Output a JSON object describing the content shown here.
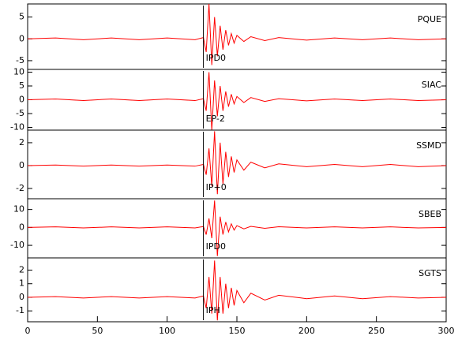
{
  "chart_data": [
    {
      "type": "line",
      "annotation": "IPD0",
      "pick_time": 126,
      "x": [
        0,
        20,
        40,
        60,
        80,
        100,
        120,
        126,
        128,
        130,
        132,
        134,
        136,
        138,
        140,
        142,
        144,
        146,
        148,
        150,
        155,
        160,
        170,
        180,
        200,
        220,
        240,
        260,
        280,
        300
      ],
      "series": [
        {
          "name": "PQUE",
          "color": "#ff0000",
          "values": [
            0,
            0.2,
            -0.2,
            0.2,
            -0.2,
            0.2,
            -0.2,
            0.3,
            -3,
            8,
            -6,
            5,
            -4,
            3,
            -2.5,
            2,
            -1.5,
            1.2,
            -1,
            0.8,
            -0.6,
            0.5,
            -0.4,
            0.3,
            -0.3,
            0.2,
            -0.2,
            0.2,
            -0.2,
            0
          ]
        }
      ],
      "xlim": [
        0,
        300
      ],
      "ylim": [
        -7,
        8
      ],
      "yticks": [
        -5,
        0,
        5
      ]
    },
    {
      "type": "line",
      "annotation": "EP-2",
      "pick_time": 126,
      "x": [
        0,
        20,
        40,
        60,
        80,
        100,
        120,
        126,
        128,
        130,
        132,
        134,
        136,
        138,
        140,
        142,
        144,
        146,
        148,
        150,
        155,
        160,
        170,
        180,
        200,
        220,
        240,
        260,
        280,
        300
      ],
      "series": [
        {
          "name": "SIAC",
          "color": "#ff0000",
          "values": [
            0,
            0.3,
            -0.3,
            0.3,
            -0.3,
            0.3,
            -0.3,
            0.4,
            -4,
            10,
            -11,
            7,
            -6,
            5,
            -4,
            3,
            -2.5,
            2,
            -1.5,
            1.2,
            -1,
            0.8,
            -0.6,
            0.4,
            -0.4,
            0.3,
            -0.3,
            0.3,
            -0.3,
            0
          ]
        }
      ],
      "xlim": [
        0,
        300
      ],
      "ylim": [
        -11,
        11
      ],
      "yticks": [
        -10,
        -5,
        0,
        5,
        10
      ]
    },
    {
      "type": "line",
      "annotation": "IP+0",
      "pick_time": 126,
      "x": [
        0,
        20,
        40,
        60,
        80,
        100,
        120,
        126,
        128,
        130,
        132,
        134,
        136,
        138,
        140,
        142,
        144,
        146,
        148,
        150,
        155,
        160,
        170,
        180,
        200,
        220,
        240,
        260,
        280,
        300
      ],
      "series": [
        {
          "name": "SSMD",
          "color": "#ff0000",
          "values": [
            0,
            0.05,
            -0.05,
            0.05,
            -0.05,
            0.05,
            -0.05,
            0.1,
            -0.8,
            1.5,
            -1.8,
            3,
            -2.5,
            2,
            -1.6,
            1.2,
            -1,
            0.8,
            -0.6,
            0.5,
            -0.4,
            0.3,
            -0.2,
            0.15,
            -0.1,
            0.1,
            -0.1,
            0.1,
            -0.1,
            0
          ]
        }
      ],
      "xlim": [
        0,
        300
      ],
      "ylim": [
        -2.9,
        3.1
      ],
      "yticks": [
        -2,
        0,
        2
      ]
    },
    {
      "type": "line",
      "annotation": "IPD0",
      "pick_time": 126,
      "x": [
        0,
        20,
        40,
        60,
        80,
        100,
        120,
        126,
        128,
        130,
        132,
        134,
        136,
        138,
        140,
        142,
        144,
        146,
        148,
        150,
        155,
        160,
        170,
        180,
        200,
        220,
        240,
        260,
        280,
        300
      ],
      "series": [
        {
          "name": "SBEB",
          "color": "#ff0000",
          "values": [
            0,
            0.3,
            -0.3,
            0.3,
            -0.3,
            0.3,
            -0.3,
            0.5,
            -4,
            5,
            -6,
            15,
            -16,
            6,
            -4,
            3,
            -2.5,
            2,
            -1.5,
            1,
            -0.8,
            0.6,
            -0.5,
            0.4,
            -0.3,
            0.3,
            -0.3,
            0.3,
            -0.3,
            0
          ]
        }
      ],
      "xlim": [
        0,
        300
      ],
      "ylim": [
        -17,
        16
      ],
      "yticks": [
        -10,
        0,
        10
      ]
    },
    {
      "type": "line",
      "annotation": "IPH",
      "pick_time": 126,
      "x": [
        0,
        20,
        40,
        60,
        80,
        100,
        120,
        126,
        128,
        130,
        132,
        134,
        136,
        138,
        140,
        142,
        144,
        146,
        148,
        150,
        155,
        160,
        170,
        180,
        200,
        220,
        240,
        260,
        280,
        300
      ],
      "series": [
        {
          "name": "SGTS",
          "color": "#ff0000",
          "values": [
            0,
            0.05,
            -0.05,
            0.05,
            -0.05,
            0.05,
            -0.05,
            0.1,
            -0.8,
            1.5,
            -1.2,
            2.7,
            -1.7,
            1.5,
            -1.2,
            1,
            -0.8,
            0.7,
            -0.6,
            0.5,
            -0.4,
            0.3,
            -0.2,
            0.15,
            -0.1,
            0.1,
            -0.1,
            0.05,
            -0.05,
            0
          ]
        }
      ],
      "xlim": [
        0,
        300
      ],
      "ylim": [
        -1.8,
        2.9
      ],
      "yticks": [
        -1,
        0,
        1,
        2
      ],
      "xticks": [
        0,
        50,
        100,
        150,
        200,
        250,
        300
      ]
    }
  ]
}
